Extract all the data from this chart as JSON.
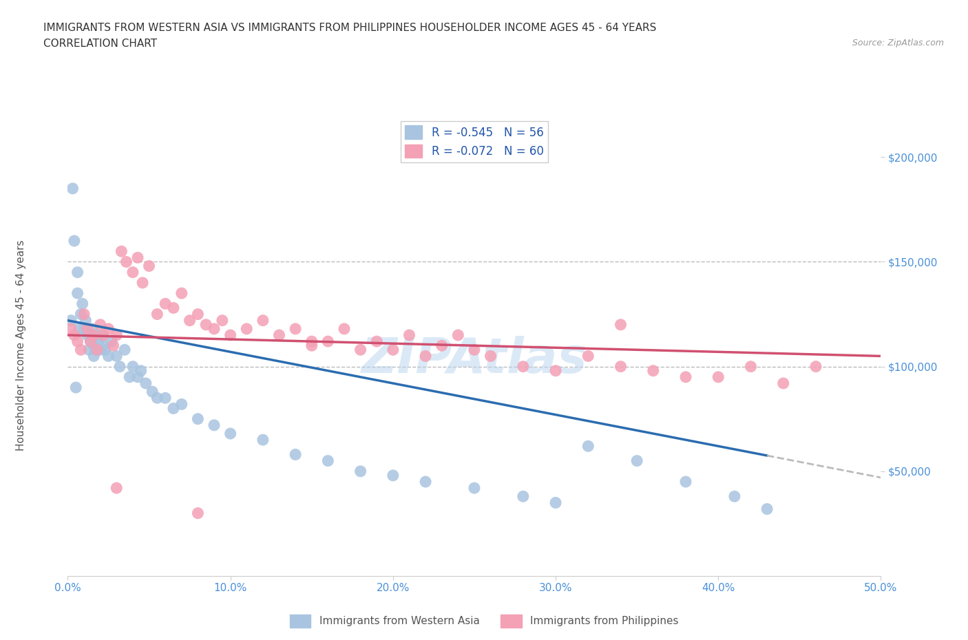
{
  "title_line1": "IMMIGRANTS FROM WESTERN ASIA VS IMMIGRANTS FROM PHILIPPINES HOUSEHOLDER INCOME AGES 45 - 64 YEARS",
  "title_line2": "CORRELATION CHART",
  "source_text": "Source: ZipAtlas.com",
  "ylabel": "Householder Income Ages 45 - 64 years",
  "xlim": [
    0,
    0.5
  ],
  "ylim": [
    0,
    220000
  ],
  "xtick_labels": [
    "0.0%",
    "10.0%",
    "20.0%",
    "30.0%",
    "40.0%",
    "50.0%"
  ],
  "xtick_vals": [
    0,
    0.1,
    0.2,
    0.3,
    0.4,
    0.5
  ],
  "ytick_vals": [
    50000,
    100000,
    150000,
    200000
  ],
  "ytick_labels": [
    "$50,000",
    "$100,000",
    "$150,000",
    "$200,000"
  ],
  "series1_label": "Immigrants from Western Asia",
  "series1_R": -0.545,
  "series1_N": 56,
  "series1_color": "#a8c4e0",
  "series1_line_color": "#2b6cb0",
  "series2_label": "Immigrants from Philippines",
  "series2_R": -0.072,
  "series2_N": 60,
  "series2_color": "#f4a0b5",
  "series2_line_color": "#d05070",
  "background_color": "#ffffff",
  "watermark_text": "ZIPAtlas",
  "dashed_line_color": "#bbbbbb",
  "wa_x": [
    0.002,
    0.004,
    0.006,
    0.006,
    0.007,
    0.008,
    0.009,
    0.01,
    0.011,
    0.012,
    0.013,
    0.014,
    0.015,
    0.016,
    0.016,
    0.017,
    0.018,
    0.019,
    0.02,
    0.021,
    0.022,
    0.023,
    0.025,
    0.027,
    0.03,
    0.032,
    0.035,
    0.038,
    0.04,
    0.043,
    0.045,
    0.048,
    0.052,
    0.055,
    0.06,
    0.065,
    0.07,
    0.08,
    0.09,
    0.1,
    0.12,
    0.14,
    0.16,
    0.18,
    0.2,
    0.22,
    0.25,
    0.28,
    0.3,
    0.32,
    0.35,
    0.38,
    0.41,
    0.43,
    0.005,
    0.003
  ],
  "wa_y": [
    122000,
    160000,
    145000,
    135000,
    118000,
    125000,
    130000,
    118000,
    122000,
    115000,
    108000,
    112000,
    118000,
    110000,
    105000,
    108000,
    115000,
    112000,
    108000,
    115000,
    110000,
    108000,
    105000,
    112000,
    105000,
    100000,
    108000,
    95000,
    100000,
    95000,
    98000,
    92000,
    88000,
    85000,
    85000,
    80000,
    82000,
    75000,
    72000,
    68000,
    65000,
    58000,
    55000,
    50000,
    48000,
    45000,
    42000,
    38000,
    35000,
    62000,
    55000,
    45000,
    38000,
    32000,
    90000,
    185000
  ],
  "ph_x": [
    0.002,
    0.004,
    0.006,
    0.008,
    0.01,
    0.012,
    0.014,
    0.016,
    0.018,
    0.02,
    0.022,
    0.025,
    0.028,
    0.03,
    0.033,
    0.036,
    0.04,
    0.043,
    0.046,
    0.05,
    0.055,
    0.06,
    0.065,
    0.07,
    0.075,
    0.08,
    0.085,
    0.09,
    0.095,
    0.1,
    0.11,
    0.12,
    0.13,
    0.14,
    0.15,
    0.16,
    0.17,
    0.18,
    0.19,
    0.2,
    0.21,
    0.22,
    0.23,
    0.24,
    0.26,
    0.28,
    0.3,
    0.32,
    0.34,
    0.36,
    0.38,
    0.4,
    0.42,
    0.44,
    0.46,
    0.34,
    0.25,
    0.15,
    0.08,
    0.03
  ],
  "ph_y": [
    118000,
    115000,
    112000,
    108000,
    125000,
    118000,
    112000,
    115000,
    108000,
    120000,
    115000,
    118000,
    110000,
    115000,
    155000,
    150000,
    145000,
    152000,
    140000,
    148000,
    125000,
    130000,
    128000,
    135000,
    122000,
    125000,
    120000,
    118000,
    122000,
    115000,
    118000,
    122000,
    115000,
    118000,
    110000,
    112000,
    118000,
    108000,
    112000,
    108000,
    115000,
    105000,
    110000,
    115000,
    105000,
    100000,
    98000,
    105000,
    100000,
    98000,
    95000,
    95000,
    100000,
    92000,
    100000,
    120000,
    108000,
    112000,
    30000,
    42000
  ]
}
